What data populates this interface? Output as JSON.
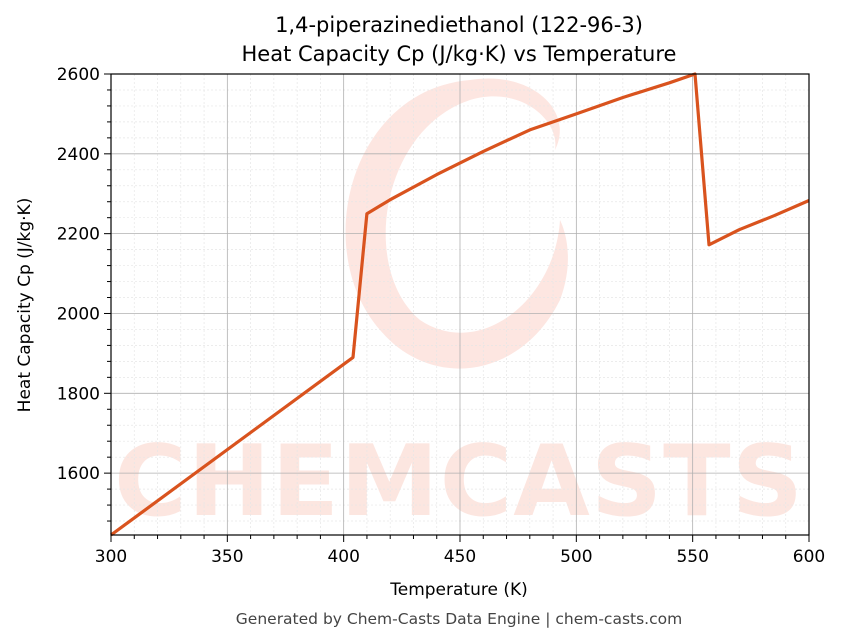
{
  "chart_data": {
    "type": "line",
    "title_line1": "1,4-piperazinediethanol (122-96-3)",
    "title_line2": "Heat Capacity Cp (J/kg·K) vs Temperature",
    "xlabel": "Temperature (K)",
    "ylabel": "Heat Capacity Cp (J/kg·K)",
    "xlim": [
      300,
      600
    ],
    "ylim": [
      1445,
      2600
    ],
    "xticks": [
      300,
      350,
      400,
      450,
      500,
      550,
      600
    ],
    "yticks": [
      1600,
      1800,
      2000,
      2200,
      2400,
      2600
    ],
    "grid": true,
    "line_color": "#d9531e",
    "series": [
      {
        "x": [
          300,
          404,
          410,
          420,
          440,
          460,
          480,
          500,
          520,
          540,
          551,
          557,
          570,
          585,
          600
        ],
        "y": [
          1445,
          1890,
          2250,
          2285,
          2348,
          2406,
          2460,
          2500,
          2541,
          2578,
          2600,
          2172,
          2210,
          2245,
          2283
        ]
      }
    ]
  },
  "watermark": {
    "text": "CHEMCASTS",
    "color": "#fbd2c8"
  },
  "footer": "Generated by Chem-Casts Data Engine | chem-casts.com"
}
